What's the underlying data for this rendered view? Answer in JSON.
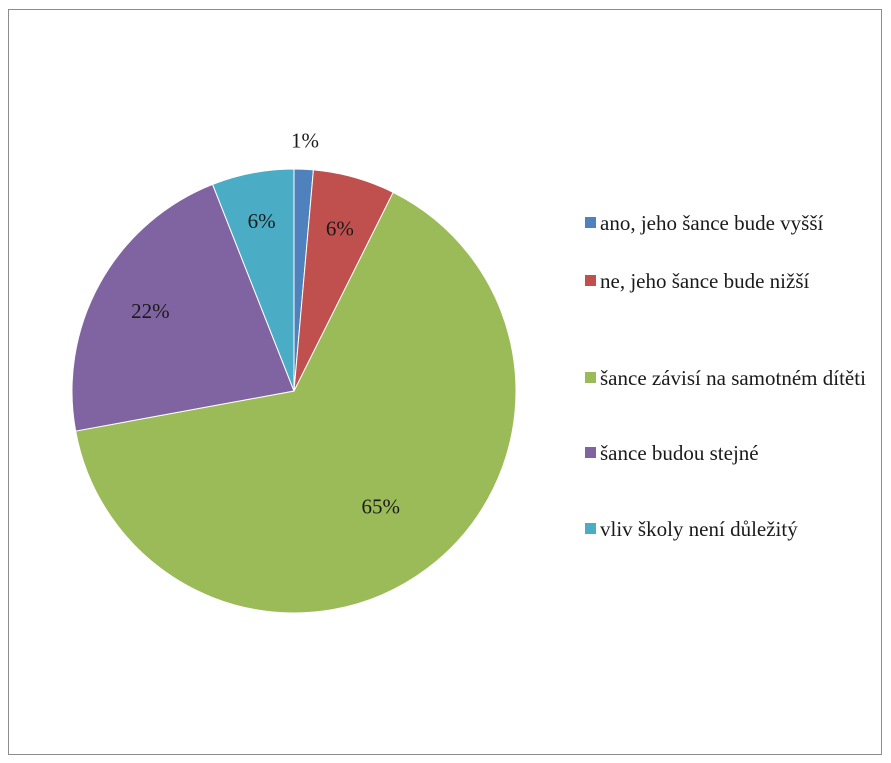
{
  "chart_data": {
    "type": "pie",
    "categories": [
      "ano, jeho šance bude vyšší",
      "ne, jeho šance bude nižší",
      "šance závisí na samotném dítěti",
      "šance budou stejné",
      "vliv školy není důležitý"
    ],
    "values": [
      1.4,
      6,
      65,
      22,
      6
    ],
    "data_labels": [
      "1%",
      "6%",
      "65%",
      "22%",
      "6%"
    ],
    "colors": [
      "#4F81BD",
      "#C0504D",
      "#9BBB59",
      "#8064A2",
      "#4BACC6"
    ],
    "start_angle_deg": 0,
    "direction": "clockwise",
    "legend_position": "right"
  }
}
